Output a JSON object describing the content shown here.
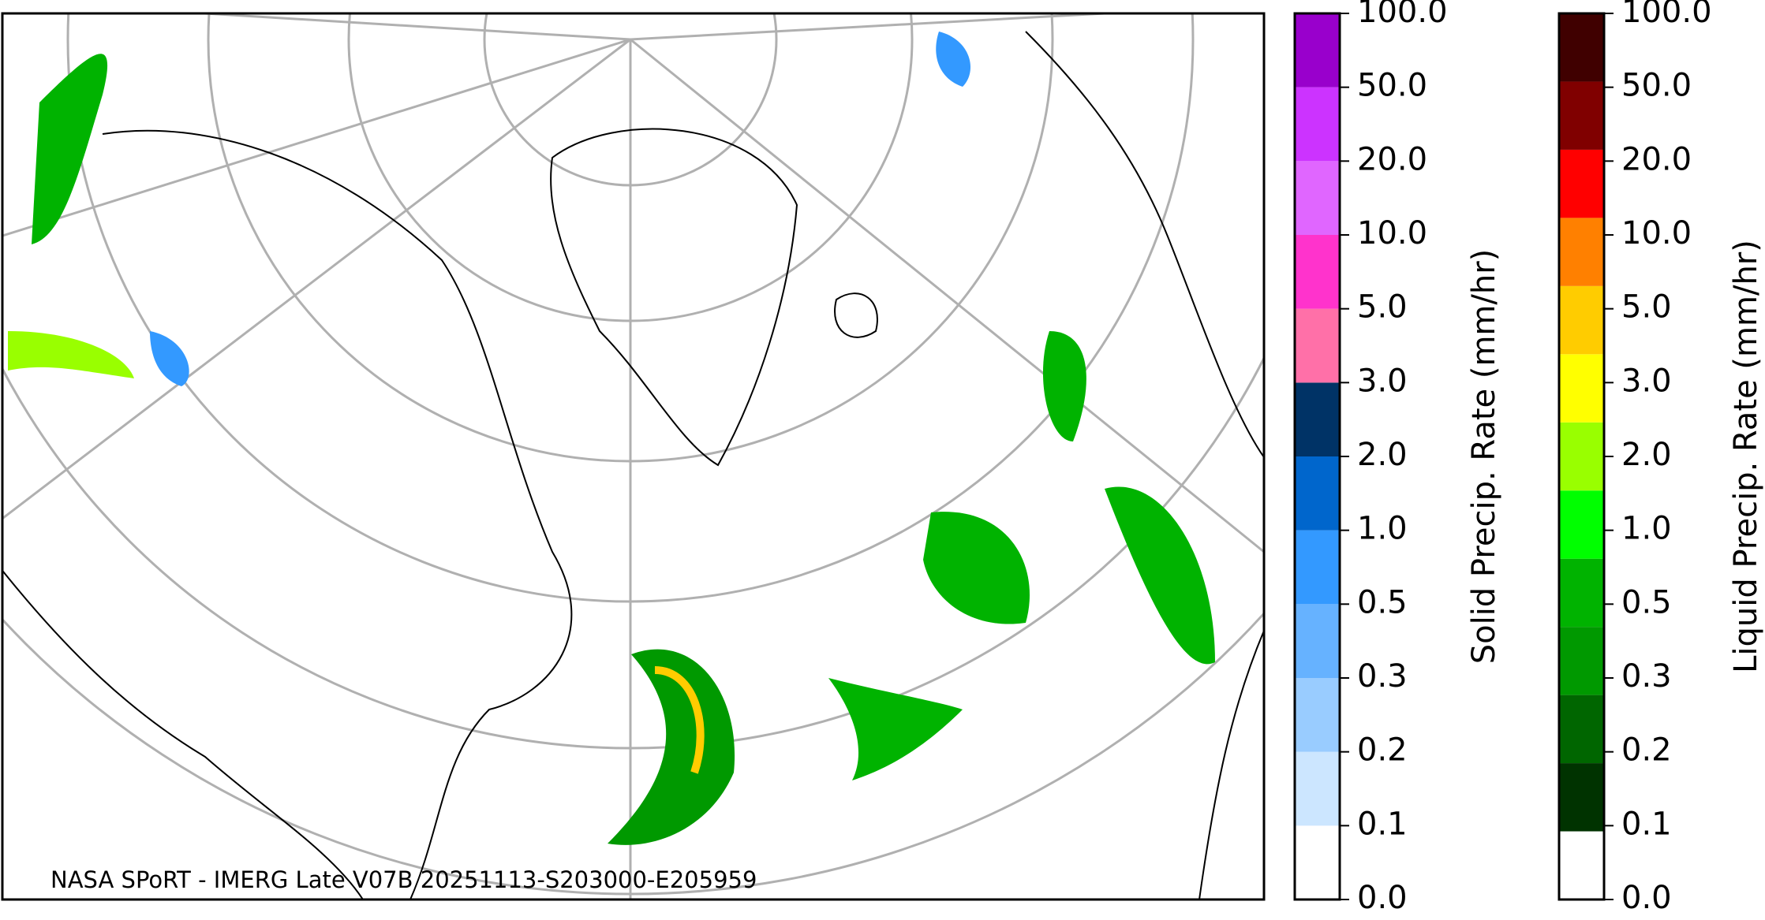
{
  "map": {
    "credit": "NASA SPoRT - IMERG Late V07B 20251113-S203000-E205959",
    "colorbars": [
      {
        "label": "Solid Precip. Rate (mm/hr)",
        "ticks": [
          "0.0",
          "0.1",
          "0.2",
          "0.3",
          "0.5",
          "1.0",
          "2.0",
          "3.0",
          "5.0",
          "10.0",
          "20.0",
          "50.0",
          "100.0"
        ],
        "colors": [
          "#ffffff",
          "#cce6ff",
          "#99ccff",
          "#66b2ff",
          "#3399ff",
          "#0066cc",
          "#003366",
          "#ff70a8",
          "#ff33cc",
          "#e066ff",
          "#cc33ff",
          "#9900cc"
        ]
      },
      {
        "label": "Liquid Precip. Rate (mm/hr)",
        "ticks": [
          "0.0",
          "0.1",
          "0.2",
          "0.3",
          "0.5",
          "1.0",
          "2.0",
          "3.0",
          "5.0",
          "10.0",
          "20.0",
          "50.0",
          "100.0"
        ],
        "colors": [
          "#ffffff",
          "#003300",
          "#006600",
          "#009900",
          "#00b300",
          "#00ff00",
          "#99ff00",
          "#ffff00",
          "#ffcc00",
          "#ff8000",
          "#ff0000",
          "#800000",
          "#400000"
        ]
      }
    ]
  }
}
